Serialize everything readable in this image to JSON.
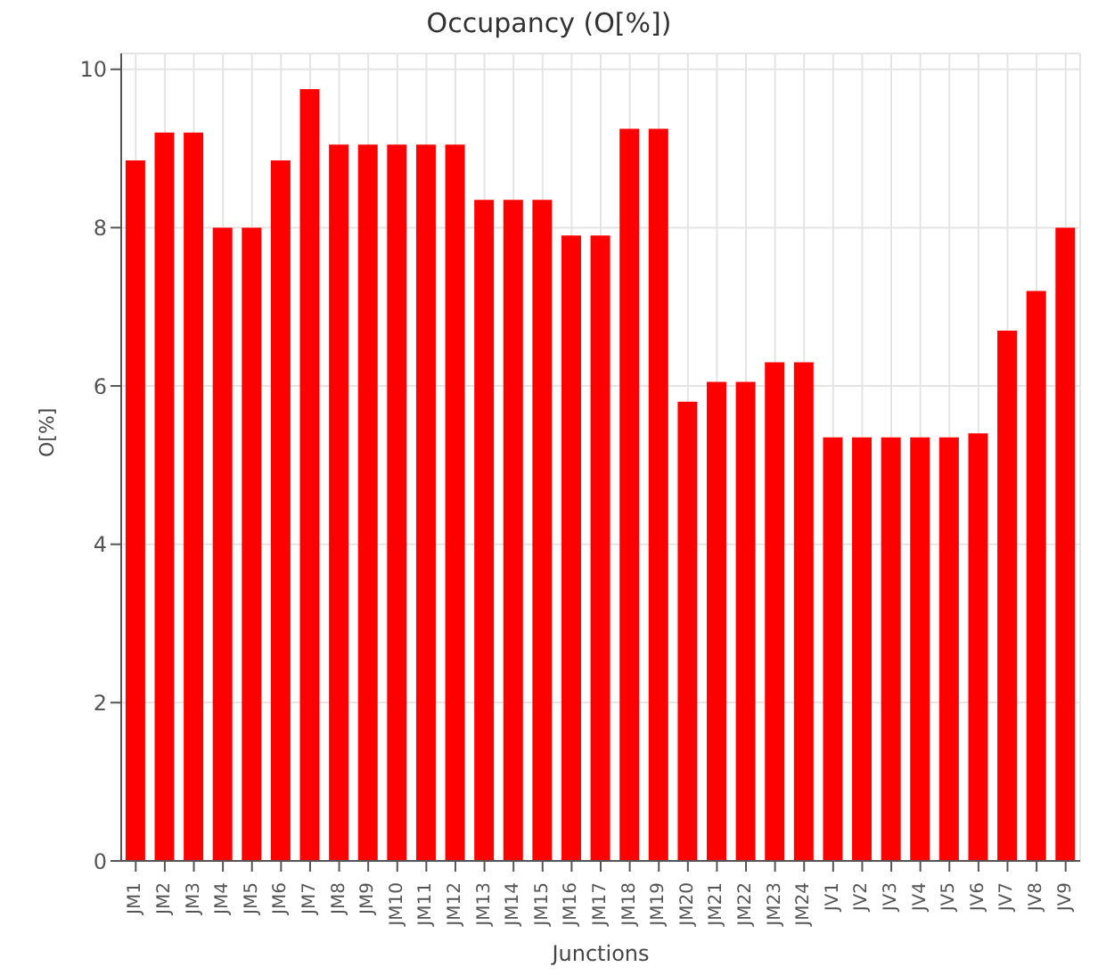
{
  "chart_data": {
    "type": "bar",
    "title": "Occupancy (O[%])",
    "xlabel": "Junctions",
    "ylabel": "O[%]",
    "categories": [
      "JM1",
      "JM2",
      "JM3",
      "JM4",
      "JM5",
      "JM6",
      "JM7",
      "JM8",
      "JM9",
      "JM10",
      "JM11",
      "JM12",
      "JM13",
      "JM14",
      "JM15",
      "JM16",
      "JM17",
      "JM18",
      "JM19",
      "JM20",
      "JM21",
      "JM22",
      "JM23",
      "JM24",
      "JV1",
      "JV2",
      "JV3",
      "JV4",
      "JV5",
      "JV6",
      "JV7",
      "JV8",
      "JV9"
    ],
    "values": [
      8.85,
      9.2,
      9.2,
      8.0,
      8.0,
      8.85,
      9.75,
      9.05,
      9.05,
      9.05,
      9.05,
      9.05,
      8.35,
      8.35,
      8.35,
      7.9,
      7.9,
      9.25,
      9.25,
      5.8,
      6.05,
      6.05,
      6.3,
      6.3,
      5.35,
      5.35,
      5.35,
      5.35,
      5.35,
      5.4,
      6.7,
      7.2,
      8.0
    ],
    "color": "#ff0000",
    "ylim": [
      0,
      10.2
    ],
    "yticks": [
      0,
      2,
      4,
      6,
      8,
      10
    ],
    "grid": true
  }
}
